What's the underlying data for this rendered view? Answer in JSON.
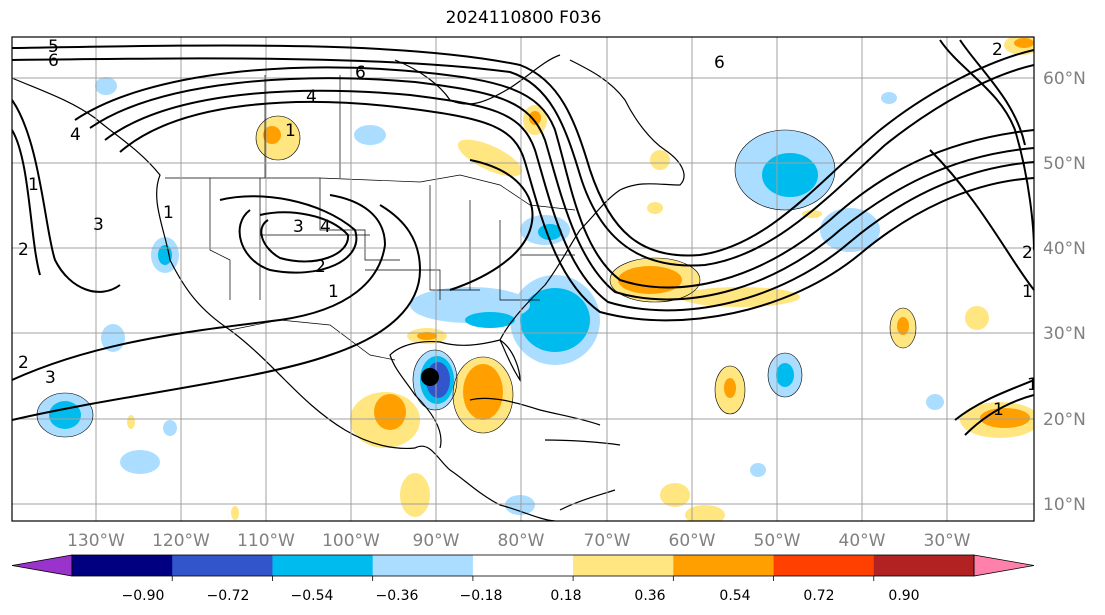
{
  "map": {
    "title": "2024110800 F036",
    "lon_labels": [
      "130°W",
      "120°W",
      "110°W",
      "100°W",
      "90°W",
      "80°W",
      "70°W",
      "60°W",
      "50°W",
      "40°W",
      "30°W"
    ],
    "lat_labels": [
      "60°N",
      "50°N",
      "40°N",
      "30°N",
      "20°N",
      "10°N"
    ],
    "contour_labels": [
      "5",
      "6",
      "6",
      "6",
      "2",
      "4",
      "1",
      "4",
      "1",
      "3",
      "2",
      "3",
      "4",
      "1",
      "3",
      "1",
      "2",
      "2",
      "1",
      "2",
      "1",
      "1"
    ],
    "storm_marker": "black-dot",
    "colors": {
      "contour": "#000000",
      "grid": "#a0a0a0",
      "coast": "#000000"
    }
  },
  "colorbar": {
    "tick_labels": [
      "−0.90",
      "−0.72",
      "−0.54",
      "−0.36",
      "−0.18",
      "0.18",
      "0.36",
      "0.54",
      "0.72",
      "0.90"
    ],
    "colors": [
      "#9933cc",
      "#000080",
      "#3355cc",
      "#00bbee",
      "#aaddff",
      "#ffffff",
      "#ffe680",
      "#ffa000",
      "#ff4000",
      "#b22222",
      "#ff80aa"
    ]
  }
}
